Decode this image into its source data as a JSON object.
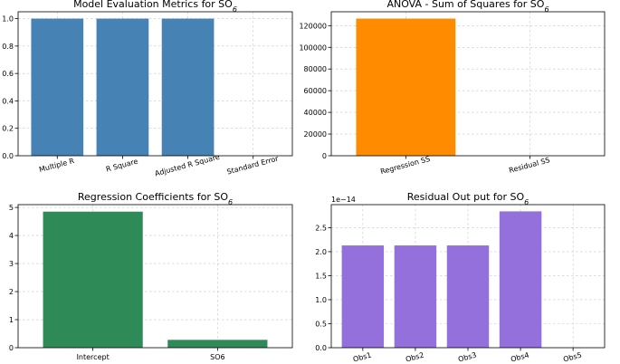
{
  "chart_data": [
    {
      "type": "bar",
      "title": "Model Evaluation Metrics for SO",
      "title_sub": "6",
      "categories": [
        "Multiple R",
        "R Square",
        "Adjusted R Square",
        "Standard Error"
      ],
      "values": [
        1.0,
        1.0,
        1.0,
        0.0
      ],
      "ylim": [
        0,
        1.05
      ],
      "yticks": [
        0.0,
        0.2,
        0.4,
        0.6,
        0.8,
        1.0
      ],
      "ytick_labels": [
        "0.0",
        "0.2",
        "0.4",
        "0.6",
        "0.8",
        "1.0"
      ],
      "xtick_rotation": -15,
      "color": "#4682b4",
      "grid": true
    },
    {
      "type": "bar",
      "title": "ANOVA - Sum of Squares for SO",
      "title_sub": "6",
      "categories": [
        "Regression SS",
        "Residual SS"
      ],
      "values": [
        126500,
        0
      ],
      "ylim": [
        0,
        132800
      ],
      "yticks": [
        0,
        20000,
        40000,
        60000,
        80000,
        100000,
        120000
      ],
      "ytick_labels": [
        "0",
        "20000",
        "40000",
        "60000",
        "80000",
        "100000",
        "120000"
      ],
      "xtick_rotation": -15,
      "color": "#ff8c00",
      "grid": true
    },
    {
      "type": "bar",
      "title": "Regression Coefficients for SO",
      "title_sub": "6",
      "categories": [
        "Intercept",
        "SO6"
      ],
      "values": [
        4.85,
        0.28
      ],
      "ylim": [
        0,
        5.1
      ],
      "yticks": [
        0,
        1,
        2,
        3,
        4,
        5
      ],
      "ytick_labels": [
        "0",
        "1",
        "2",
        "3",
        "4",
        "5"
      ],
      "xtick_rotation": 0,
      "color": "#2e8b57",
      "grid": true
    },
    {
      "type": "bar",
      "title": "Residual Out put  for SO",
      "title_sub": "6",
      "categories": [
        "Obs1",
        "Obs2",
        "Obs3",
        "Obs4",
        "Obs5"
      ],
      "values": [
        2.13,
        2.13,
        2.13,
        2.84,
        0
      ],
      "ylim": [
        0,
        2.98
      ],
      "yticks": [
        0.0,
        0.5,
        1.0,
        1.5,
        2.0,
        2.5
      ],
      "ytick_labels": [
        "0.0",
        "0.5",
        "1.0",
        "1.5",
        "2.0",
        "2.5"
      ],
      "offset_label": "1e−14",
      "xtick_rotation": -15,
      "color": "#9370db",
      "grid": true
    }
  ]
}
